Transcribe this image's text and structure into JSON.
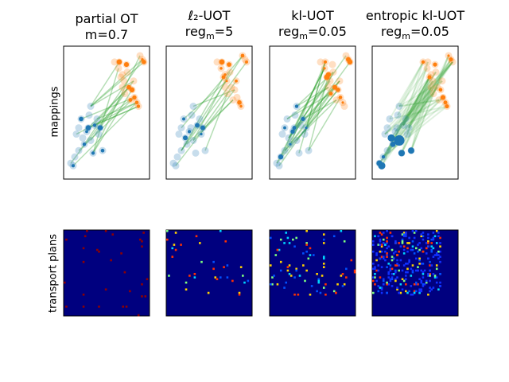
{
  "chart_data": {
    "type": "scatter",
    "row_labels": [
      "mappings",
      "transport plans"
    ],
    "panels": [
      {
        "title_line1": "partial OT",
        "title_line2_pre": "m=0.7",
        "title_line2_sub": "",
        "title_line2_post": ""
      },
      {
        "title_line1": "ℓ₂-UOT",
        "title_line2_pre": "reg",
        "title_line2_sub": "m",
        "title_line2_post": "=5"
      },
      {
        "title_line1": "kl-UOT",
        "title_line2_pre": "reg",
        "title_line2_sub": "m",
        "title_line2_post": "=0.05"
      },
      {
        "title_line1": "entropic kl-UOT",
        "title_line2_pre": "reg",
        "title_line2_sub": "m",
        "title_line2_post": "=0.05"
      }
    ],
    "source_points": [
      [
        0.05,
        0.1
      ],
      [
        0.1,
        0.15
      ],
      [
        0.08,
        0.08
      ],
      [
        0.15,
        0.2
      ],
      [
        0.2,
        0.3
      ],
      [
        0.25,
        0.35
      ],
      [
        0.3,
        0.28
      ],
      [
        0.35,
        0.4
      ],
      [
        0.18,
        0.45
      ],
      [
        0.28,
        0.48
      ],
      [
        0.4,
        0.33
      ],
      [
        0.45,
        0.2
      ],
      [
        0.22,
        0.25
      ],
      [
        0.33,
        0.18
      ],
      [
        0.12,
        0.33
      ],
      [
        0.38,
        0.45
      ],
      [
        0.27,
        0.38
      ],
      [
        0.42,
        0.38
      ],
      [
        0.3,
        0.55
      ],
      [
        0.15,
        0.38
      ]
    ],
    "target_points": [
      [
        0.6,
        0.9
      ],
      [
        0.65,
        0.85
      ],
      [
        0.7,
        0.8
      ],
      [
        0.72,
        0.75
      ],
      [
        0.78,
        0.7
      ],
      [
        0.85,
        0.62
      ],
      [
        0.9,
        0.55
      ],
      [
        0.75,
        0.88
      ],
      [
        0.68,
        0.78
      ],
      [
        0.82,
        0.68
      ],
      [
        0.88,
        0.58
      ],
      [
        0.95,
        0.92
      ],
      [
        0.92,
        0.95
      ],
      [
        0.97,
        0.9
      ],
      [
        0.8,
        0.6
      ],
      [
        0.73,
        0.65
      ],
      [
        0.66,
        0.9
      ],
      [
        0.7,
        0.7
      ],
      [
        0.84,
        0.75
      ],
      [
        0.76,
        0.82
      ]
    ],
    "colors": {
      "source": "#1f77b4",
      "target": "#ff7f0e",
      "mapping": "#2ca02c",
      "plan_background": "#00007f"
    }
  }
}
